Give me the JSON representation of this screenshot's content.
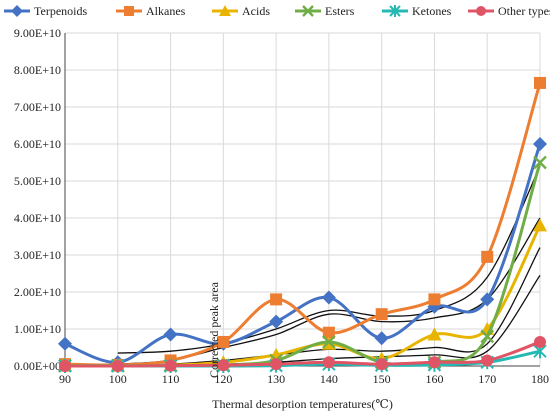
{
  "chart_data": {
    "type": "line",
    "title": "",
    "xlabel": "Thermal desorption temperatures(℃)",
    "ylabel": "Corrected peak area",
    "x": [
      90,
      100,
      110,
      120,
      130,
      140,
      150,
      160,
      170,
      180
    ],
    "ylim": [
      0,
      90000000000.0
    ],
    "y_ticks": [
      "0.00E+00",
      "1.00E+10",
      "2.00E+10",
      "3.00E+10",
      "4.00E+10",
      "5.00E+10",
      "6.00E+10",
      "7.00E+10",
      "8.00E+10",
      "9.00E+10"
    ],
    "grid": true,
    "legend_position": "top",
    "series": [
      {
        "name": "Terpenoids",
        "color": "#4472C4",
        "marker": "diamond",
        "values": [
          6000000000.0,
          1000000000.0,
          8500000000.0,
          6000000000.0,
          12000000000.0,
          18500000000.0,
          7500000000.0,
          16000000000.0,
          18000000000.0,
          60000000000.0
        ]
      },
      {
        "name": "Alkanes",
        "color": "#ED7D31",
        "marker": "square",
        "values": [
          500000000.0,
          300000000.0,
          1500000000.0,
          6500000000.0,
          18000000000.0,
          9000000000.0,
          14000000000.0,
          18000000000.0,
          29500000000.0,
          76500000000.0
        ]
      },
      {
        "name": "Acids",
        "color": "#E8B400",
        "marker": "triangle",
        "values": [
          100000000.0,
          100000000.0,
          200000000.0,
          1000000000.0,
          3000000000.0,
          6000000000.0,
          2000000000.0,
          8500000000.0,
          10000000000.0,
          38000000000.0
        ]
      },
      {
        "name": "Esters",
        "color": "#70AD47",
        "marker": "x",
        "values": [
          100000000.0,
          100000000.0,
          100000000.0,
          200000000.0,
          1500000000.0,
          6500000000.0,
          1000000000.0,
          1000000000.0,
          8000000000.0,
          55000000000.0
        ]
      },
      {
        "name": "Ketones",
        "color": "#26B8B3",
        "marker": "star",
        "values": [
          0,
          0,
          0,
          0,
          100000000.0,
          500000000.0,
          200000000.0,
          300000000.0,
          1000000000.0,
          4000000000.0
        ]
      },
      {
        "name": "Other types",
        "color": "#E05565",
        "marker": "circle",
        "values": [
          0,
          0,
          100000000.0,
          200000000.0,
          500000000.0,
          1000000000.0,
          500000000.0,
          1000000000.0,
          1500000000.0,
          6500000000.0
        ]
      }
    ],
    "trendlines": [
      {
        "color": "#111111",
        "values": [
          null,
          3500000000.0,
          4000000000.0,
          6000000000.0,
          10000000000.0,
          15000000000.0,
          13500000000.0,
          15000000000.0,
          24000000000.0,
          54000000000.0
        ]
      },
      {
        "color": "#111111",
        "values": [
          null,
          500000000.0,
          1500000000.0,
          5000000000.0,
          8500000000.0,
          14000000000.0,
          12000000000.0,
          13000000000.0,
          18000000000.0,
          40000000000.0
        ]
      },
      {
        "color": "#111111",
        "values": [
          null,
          200000000.0,
          500000000.0,
          1500000000.0,
          3000000000.0,
          4500000000.0,
          4000000000.0,
          5000000000.0,
          6000000000.0,
          32000000000.0
        ]
      },
      {
        "color": "#111111",
        "values": [
          null,
          0,
          200000000.0,
          500000000.0,
          1000000000.0,
          2000000000.0,
          2500000000.0,
          3000000000.0,
          4000000000.0,
          24500000000.0
        ]
      }
    ]
  }
}
